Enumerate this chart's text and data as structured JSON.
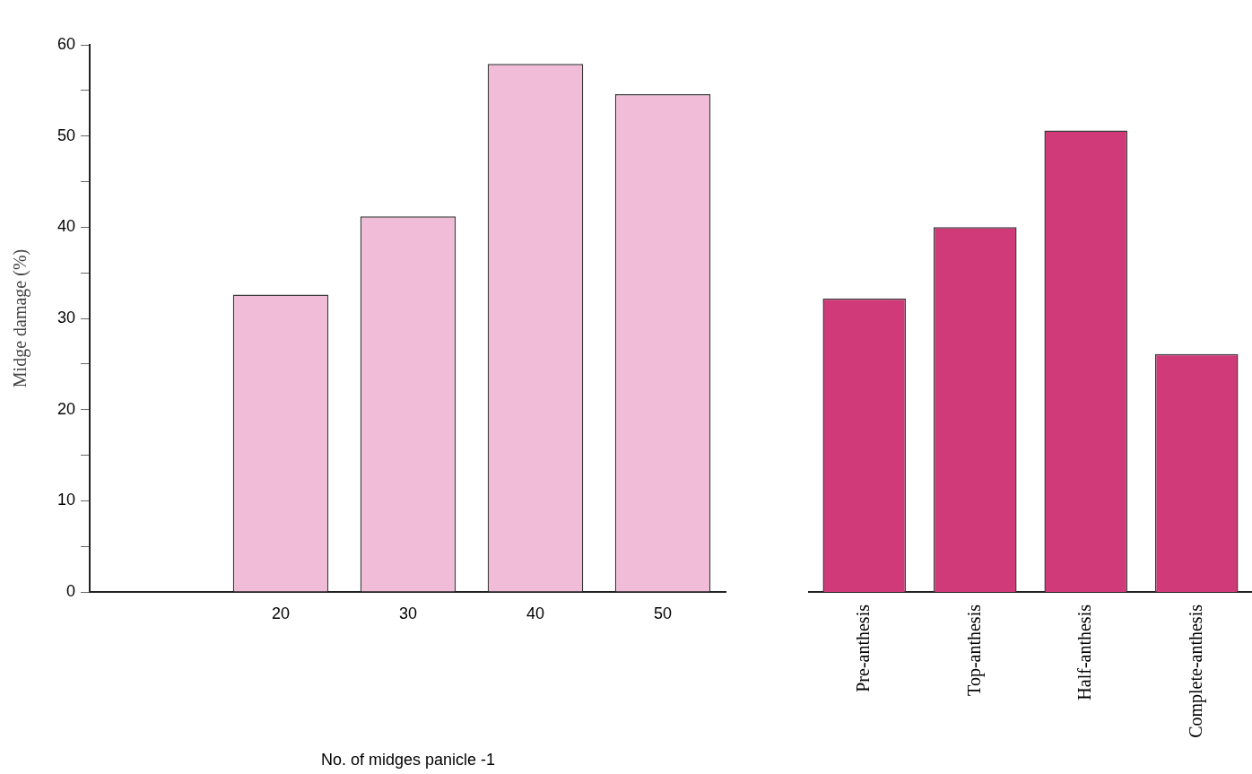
{
  "chart_data": [
    {
      "type": "bar",
      "ylabel": "Midge damage (%)",
      "xlabel": "No. of midges panicle -1",
      "categories": [
        null,
        "20",
        "30",
        "40",
        "50"
      ],
      "values": [
        null,
        32.6,
        41.2,
        57.9,
        54.6
      ],
      "color": "#f0bcd8",
      "ylim": [
        0,
        60
      ],
      "yticks": [
        0,
        {
          "value": 5,
          "label": null
        },
        10,
        {
          "value": 15,
          "label": null
        },
        20,
        {
          "value": 25,
          "label": null
        },
        30,
        {
          "value": 35,
          "label": null
        },
        40,
        {
          "value": 45,
          "label": null
        },
        50,
        {
          "value": 55,
          "label": null
        },
        60
      ],
      "grid": false
    },
    {
      "type": "bar",
      "categories": [
        "Pre-anthesis",
        "Top-anthesis",
        "Half-anthesis",
        "Complete-anthesis"
      ],
      "values": [
        32.2,
        40.0,
        50.6,
        26.1
      ],
      "color": "#d03a78",
      "ylim": [
        0,
        60
      ],
      "grid": false,
      "tick_labels": "x"
    }
  ]
}
